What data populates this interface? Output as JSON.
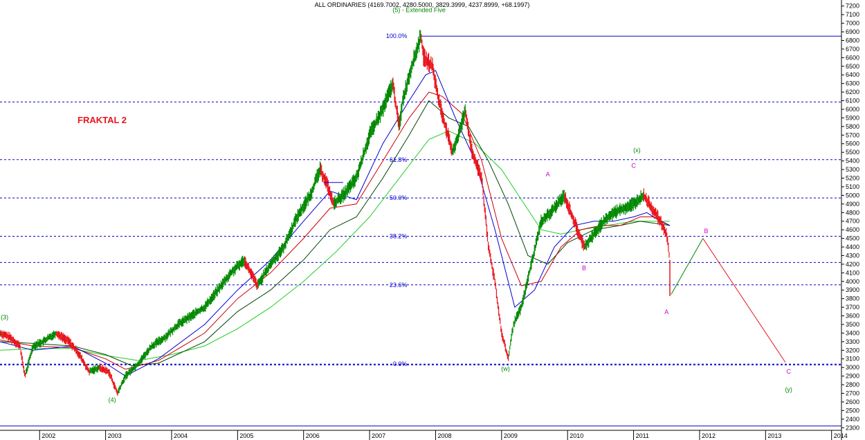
{
  "chart_data": {
    "type": "candlestick-line",
    "title": "ALL ORDINARIES (4169.7002, 4280.5000, 3829.3999, 4237.8999, +68.1997)",
    "subtitle": "(5) - Extended Five",
    "tag": "FRAKTAL 2",
    "ylim": [
      2270,
      7270
    ],
    "xlim": [
      2001.4,
      2014.15
    ],
    "y_ticks": [
      2300,
      2400,
      2500,
      2600,
      2700,
      2800,
      2900,
      3000,
      3100,
      3200,
      3300,
      3400,
      3500,
      3600,
      3700,
      3800,
      3900,
      4000,
      4100,
      4200,
      4300,
      4400,
      4500,
      4600,
      4700,
      4800,
      4900,
      5000,
      5100,
      5200,
      5300,
      5400,
      5500,
      5600,
      5700,
      5800,
      5900,
      6000,
      6100,
      6200,
      6300,
      6400,
      6500,
      6600,
      6700,
      6800,
      6900,
      7000,
      7100,
      7200
    ],
    "x_ticks": [
      "2002",
      "2003",
      "2004",
      "2005",
      "2006",
      "2007",
      "2008",
      "2009",
      "2010",
      "2011",
      "2012",
      "2013",
      "2014"
    ],
    "price": {
      "x": [
        2001.4,
        2001.55,
        2001.7,
        2001.78,
        2001.9,
        2002.05,
        2002.25,
        2002.45,
        2002.6,
        2002.75,
        2002.9,
        2003.05,
        2003.18,
        2003.3,
        2003.5,
        2003.7,
        2003.9,
        2004.1,
        2004.3,
        2004.5,
        2004.7,
        2004.9,
        2005.1,
        2005.2,
        2005.3,
        2005.5,
        2005.7,
        2005.9,
        2006.1,
        2006.25,
        2006.35,
        2006.45,
        2006.6,
        2006.8,
        2007.0,
        2007.2,
        2007.35,
        2007.45,
        2007.5,
        2007.62,
        2007.78,
        2007.82,
        2007.95,
        2008.05,
        2008.15,
        2008.25,
        2008.35,
        2008.45,
        2008.55,
        2008.7,
        2008.8,
        2008.9,
        2009.0,
        2009.1,
        2009.18,
        2009.3,
        2009.45,
        2009.6,
        2009.75,
        2009.85,
        2009.95,
        2010.1,
        2010.25,
        2010.35,
        2010.45,
        2010.55,
        2010.7,
        2010.85,
        2011.0,
        2011.15,
        2011.28,
        2011.4,
        2011.5,
        2011.55
      ],
      "y": [
        3400,
        3350,
        3250,
        2900,
        3250,
        3300,
        3400,
        3300,
        3150,
        2950,
        3000,
        2950,
        2700,
        2900,
        3050,
        3250,
        3350,
        3500,
        3600,
        3700,
        3900,
        4100,
        4250,
        4100,
        3950,
        4200,
        4400,
        4750,
        5000,
        5300,
        5150,
        4900,
        5000,
        5200,
        5700,
        6000,
        6300,
        5800,
        6100,
        6450,
        6850,
        6600,
        6500,
        6100,
        5800,
        5500,
        5700,
        6000,
        5500,
        5200,
        4400,
        4000,
        3400,
        3100,
        3500,
        3700,
        4200,
        4700,
        4800,
        4900,
        5000,
        4700,
        4400,
        4500,
        4600,
        4700,
        4800,
        4850,
        4900,
        5000,
        4850,
        4700,
        4550,
        4250
      ]
    },
    "ma_blue": {
      "x": [
        2001.4,
        2001.9,
        2002.5,
        2003.0,
        2003.3,
        2003.8,
        2004.5,
        2005.0,
        2005.5,
        2006.0,
        2006.4,
        2006.8,
        2007.2,
        2007.6,
        2007.85,
        2008.0,
        2008.3,
        2008.6,
        2008.9,
        2009.2,
        2009.5,
        2009.8,
        2010.1,
        2010.4,
        2010.7,
        2011.0,
        2011.2,
        2011.4,
        2011.55
      ],
      "y": [
        3300,
        3200,
        3250,
        3050,
        2900,
        3100,
        3500,
        3900,
        4250,
        4700,
        5050,
        4950,
        5600,
        6100,
        6400,
        6450,
        5900,
        5400,
        4600,
        3700,
        3900,
        4400,
        4650,
        4700,
        4700,
        4750,
        4800,
        4700,
        4650
      ]
    },
    "ma_red": {
      "x": [
        2001.4,
        2001.9,
        2002.5,
        2003.0,
        2003.3,
        2003.8,
        2004.5,
        2005.0,
        2005.5,
        2006.0,
        2006.4,
        2006.8,
        2007.2,
        2007.6,
        2007.9,
        2008.1,
        2008.4,
        2008.7,
        2009.0,
        2009.3,
        2009.6,
        2009.9,
        2010.2,
        2010.5,
        2010.8,
        2011.1,
        2011.3,
        2011.55
      ],
      "y": [
        3320,
        3250,
        3230,
        3100,
        2980,
        3080,
        3400,
        3800,
        4100,
        4500,
        4850,
        4900,
        5400,
        5900,
        6200,
        6150,
        5950,
        5400,
        4500,
        3950,
        4000,
        4400,
        4600,
        4650,
        4650,
        4750,
        4750,
        4650
      ]
    },
    "ma_dkgreen": {
      "x": [
        2001.4,
        2001.9,
        2002.5,
        2003.0,
        2003.4,
        2003.8,
        2004.5,
        2005.0,
        2005.5,
        2006.0,
        2006.4,
        2006.8,
        2007.2,
        2007.6,
        2007.9,
        2008.2,
        2008.5,
        2008.8,
        2009.1,
        2009.4,
        2009.7,
        2010.0,
        2010.4,
        2010.8,
        2011.1,
        2011.55
      ],
      "y": [
        3300,
        3280,
        3250,
        3150,
        3020,
        3050,
        3300,
        3650,
        3900,
        4250,
        4600,
        4750,
        5200,
        5700,
        6100,
        5900,
        5800,
        5400,
        4900,
        4300,
        4200,
        4450,
        4600,
        4650,
        4700,
        4650
      ]
    },
    "ma_green": {
      "x": [
        2001.4,
        2002.0,
        2002.5,
        2003.0,
        2003.5,
        2004.0,
        2004.5,
        2005.0,
        2005.5,
        2006.0,
        2006.5,
        2007.0,
        2007.5,
        2007.9,
        2008.2,
        2008.6,
        2009.0,
        2009.3,
        2009.6,
        2009.9,
        2010.2,
        2010.6,
        2011.0,
        2011.3,
        2011.55
      ],
      "y": [
        3200,
        3220,
        3220,
        3140,
        3080,
        3150,
        3250,
        3450,
        3700,
        4000,
        4350,
        4750,
        5250,
        5650,
        5750,
        5600,
        5300,
        4950,
        4600,
        4550,
        4600,
        4650,
        4700,
        4700,
        4700
      ]
    },
    "projection": {
      "x": [
        2011.57,
        2012.05,
        2013.3
      ],
      "y": [
        3850,
        4500,
        3060
      ]
    },
    "trendline": {
      "x": [
        2006.3,
        2006.6
      ],
      "y": [
        5150,
        5150
      ]
    },
    "fib_levels": [
      {
        "label": "100.0%",
        "value": 6850
      },
      {
        "label": "61.8%",
        "value": 5415
      },
      {
        "label": "50.0%",
        "value": 4970
      },
      {
        "label": "38.2%",
        "value": 4525
      },
      {
        "label": "23.6%",
        "value": 3960
      },
      {
        "label": "0.0%",
        "value": 3040
      }
    ],
    "extra_lines": [
      {
        "value": 6085,
        "style": "dashed"
      },
      {
        "value": 4220,
        "style": "dashed"
      },
      {
        "value": 3030,
        "style": "dashed"
      },
      {
        "value": 2320,
        "style": "solid"
      }
    ],
    "wave_labels": [
      {
        "text": "(3)",
        "x": 2001.47,
        "y": 3560,
        "color": "#008800"
      },
      {
        "text": "(4)",
        "x": 2003.1,
        "y": 2600,
        "color": "#008800"
      },
      {
        "text": "(5) - Extended Five",
        "x": 2007.75,
        "y": 7130,
        "color": "#008800"
      },
      {
        "text": "(w)",
        "x": 2009.06,
        "y": 2960,
        "color": "#008800"
      },
      {
        "text": "(x)",
        "x": 2011.05,
        "y": 5500,
        "color": "#008800"
      },
      {
        "text": "(y)",
        "x": 2013.35,
        "y": 2720,
        "color": "#008800"
      },
      {
        "text": "A",
        "x": 2009.7,
        "y": 5220,
        "color": "#cc00cc"
      },
      {
        "text": "B",
        "x": 2010.25,
        "y": 4130,
        "color": "#cc00cc"
      },
      {
        "text": "C",
        "x": 2011.0,
        "y": 5320,
        "color": "#cc00cc"
      },
      {
        "text": "A",
        "x": 2011.5,
        "y": 3620,
        "color": "#cc00cc"
      },
      {
        "text": "B",
        "x": 2012.1,
        "y": 4560,
        "color": "#cc00cc"
      },
      {
        "text": "C",
        "x": 2013.35,
        "y": 2930,
        "color": "#cc00cc"
      }
    ]
  }
}
